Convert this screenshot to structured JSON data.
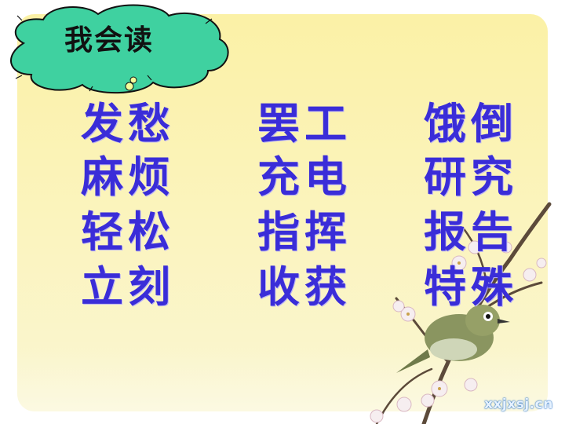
{
  "title": "我会读",
  "words": [
    "发愁",
    "罢工",
    "饿倒",
    "麻烦",
    "充电",
    "研究",
    "轻松",
    "指挥",
    "报告",
    "立刻",
    "收获",
    "特殊"
  ],
  "watermark": "xxjxsj.cn",
  "colors": {
    "background": "#fbf1a6",
    "word_text": "#3a2dd8",
    "title_text": "#111111",
    "cloud_fill": "#3fd1a0"
  }
}
